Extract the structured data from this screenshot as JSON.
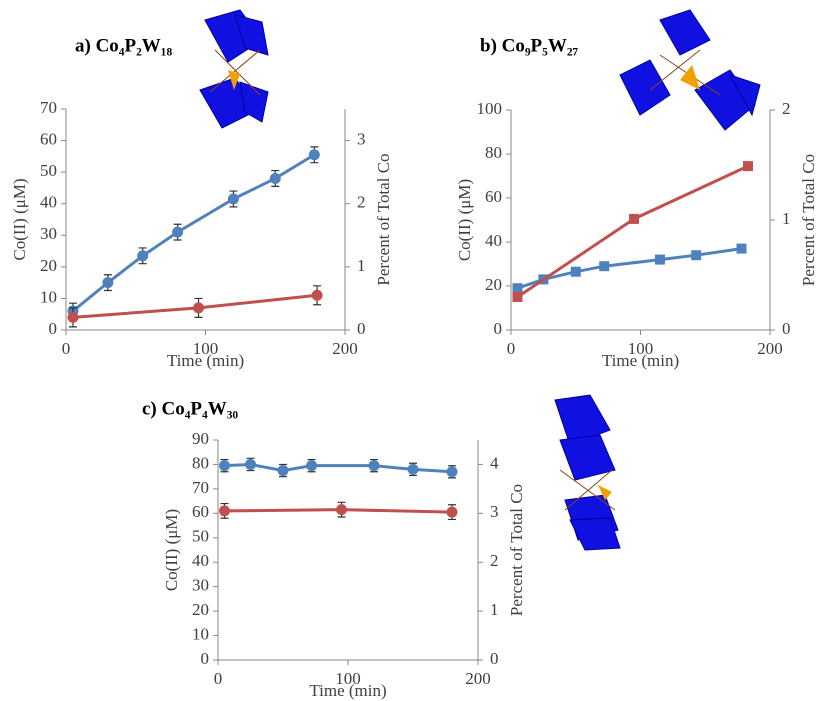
{
  "chart_data": [
    {
      "type": "line",
      "title": "a) Co₄P₂W₁₈",
      "x_label": "Time (min)",
      "y_label": "Co(II) (μM)",
      "y2_label": "Percent of Total Co",
      "xlim": [
        0,
        200
      ],
      "xticks": [
        0,
        100,
        200
      ],
      "ylim": [
        0,
        70
      ],
      "yticks": [
        0,
        10,
        20,
        30,
        40,
        50,
        60,
        70
      ],
      "y2lim": [
        0,
        3.5
      ],
      "y2ticks": [
        0,
        1,
        2,
        3
      ],
      "series": [
        {
          "color": "#4f81bd",
          "marker": "circle",
          "x": [
            5,
            30,
            55,
            80,
            120,
            150,
            178
          ],
          "values": [
            6,
            15,
            23.5,
            31,
            41.5,
            48,
            55.5
          ],
          "errors": [
            2.5,
            2.5,
            2.5,
            2.5,
            2.5,
            2.5,
            2.5
          ]
        },
        {
          "color": "#c0504d",
          "marker": "circle",
          "x": [
            5,
            95,
            180
          ],
          "values": [
            4,
            7,
            11
          ],
          "errors": [
            3,
            3,
            3
          ]
        }
      ]
    },
    {
      "type": "line",
      "title": "b) Co₉P₅W₂₇",
      "x_label": "Time (min)",
      "y_label": "Co(II) (μM)",
      "y2_label": "Percent of Total Co",
      "xlim": [
        0,
        200
      ],
      "xticks": [
        0,
        100,
        200
      ],
      "ylim": [
        0,
        100
      ],
      "yticks": [
        0,
        20,
        40,
        60,
        80,
        100
      ],
      "y2lim": [
        0,
        2
      ],
      "y2ticks": [
        0,
        1,
        2
      ],
      "series": [
        {
          "color": "#4f81bd",
          "marker": "square",
          "x": [
            5,
            25,
            50,
            72,
            115,
            143,
            178
          ],
          "values": [
            19,
            23,
            26.5,
            29,
            32,
            34,
            37
          ],
          "errors": [
            1.5,
            1.5,
            1.5,
            1.5,
            1.5,
            1.5,
            1.5
          ]
        },
        {
          "color": "#c0504d",
          "marker": "square",
          "x": [
            5,
            95,
            183
          ],
          "values": [
            15,
            50.5,
            74.5
          ],
          "errors": [
            1.5,
            1.5,
            1.5
          ]
        }
      ]
    },
    {
      "type": "line",
      "title": "c) Co₄P₄W₃₀",
      "x_label": "Time (min)",
      "y_label": "Co(II) (μM)",
      "y2_label": "Percent of Total Co",
      "xlim": [
        0,
        200
      ],
      "xticks": [
        0,
        100,
        200
      ],
      "ylim": [
        0,
        90
      ],
      "yticks": [
        0,
        10,
        20,
        30,
        40,
        50,
        60,
        70,
        80,
        90
      ],
      "y2lim": [
        0,
        4.5
      ],
      "y2ticks": [
        0,
        1,
        2,
        3,
        4
      ],
      "series": [
        {
          "color": "#4f81bd",
          "marker": "circle",
          "x": [
            5,
            25,
            50,
            72,
            120,
            150,
            180
          ],
          "values": [
            79.5,
            80,
            77.5,
            79.5,
            79.5,
            78,
            77
          ],
          "errors": [
            2.5,
            2.5,
            2.5,
            2.5,
            2.5,
            2.5,
            2.5
          ]
        },
        {
          "color": "#c0504d",
          "marker": "circle",
          "x": [
            5,
            95,
            180
          ],
          "values": [
            61,
            61.5,
            60.5
          ],
          "errors": [
            3,
            3,
            3
          ]
        }
      ]
    }
  ]
}
